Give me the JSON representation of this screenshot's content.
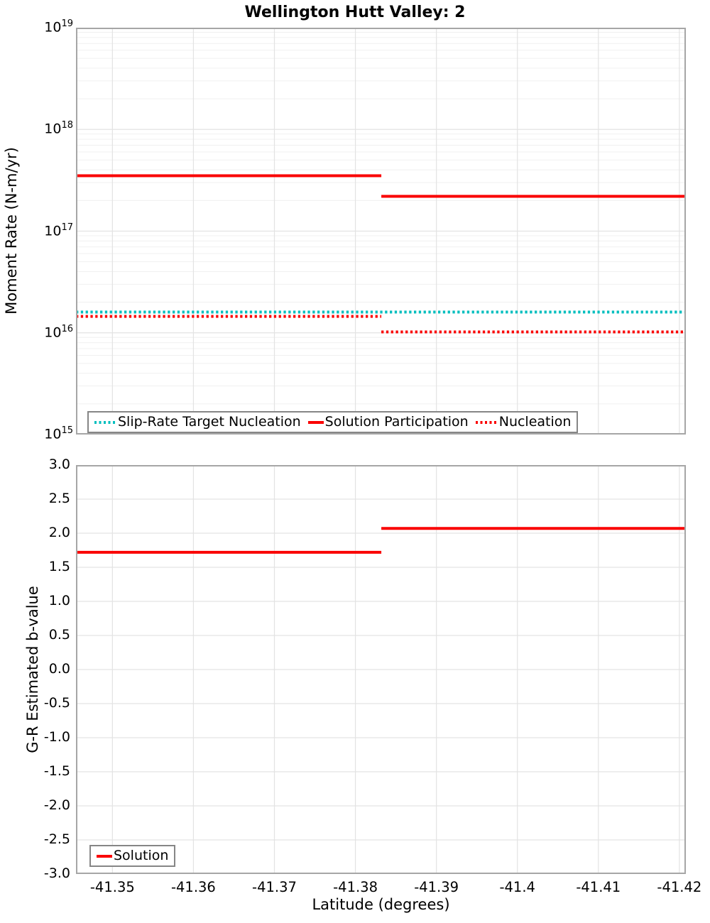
{
  "title": "Wellington Hutt Valley: 2",
  "chart_data": [
    {
      "type": "line",
      "name": "moment-rate-panel",
      "ylabel": "Moment Rate (N-m/yr)",
      "yscale": "log",
      "ylim": [
        1000000000000000.0,
        1e+19
      ],
      "y_ticks": [
        {
          "label": "10^19",
          "value": 1e+19
        },
        {
          "label": "10^18",
          "value": 1e+18
        },
        {
          "label": "10^17",
          "value": 1e+17
        },
        {
          "label": "10^16",
          "value": 1e+16
        },
        {
          "label": "10^15",
          "value": 1000000000000000.0
        }
      ],
      "xlim": [
        -41.3455,
        -41.4208
      ],
      "x_tick_values": [
        -41.35,
        -41.36,
        -41.37,
        -41.38,
        -41.39,
        -41.4,
        -41.41,
        -41.42
      ],
      "grid": true,
      "legend_position": "bottom-left",
      "series": [
        {
          "name": "Slip-Rate Target Nucleation",
          "color": "#00bebe",
          "style": "dotted",
          "segments": [
            {
              "x": [
                -41.3455,
                -41.4208
              ],
              "y": 1.6e+16
            }
          ]
        },
        {
          "name": "Solution Participation",
          "color": "#fa0000",
          "style": "solid",
          "segments": [
            {
              "x": [
                -41.3455,
                -41.3832
              ],
              "y": 3.5e+17
            },
            {
              "x": [
                -41.3832,
                -41.4208
              ],
              "y": 2.2e+17
            }
          ]
        },
        {
          "name": "Nucleation",
          "color": "#fa0000",
          "style": "dotted",
          "segments": [
            {
              "x": [
                -41.3455,
                -41.3832
              ],
              "y": 1.45e+16
            },
            {
              "x": [
                -41.3832,
                -41.4208
              ],
              "y": 1.02e+16
            }
          ]
        }
      ]
    },
    {
      "type": "line",
      "name": "b-value-panel",
      "ylabel": "G-R Estimated b-value",
      "xlabel": "Latitude (degrees)",
      "yscale": "linear",
      "ylim": [
        -3.0,
        3.0
      ],
      "y_tick_step": 0.5,
      "y_ticks": [
        {
          "label": "3.0",
          "value": 3.0
        },
        {
          "label": "2.5",
          "value": 2.5
        },
        {
          "label": "2.0",
          "value": 2.0
        },
        {
          "label": "1.5",
          "value": 1.5
        },
        {
          "label": "1.0",
          "value": 1.0
        },
        {
          "label": "0.5",
          "value": 0.5
        },
        {
          "label": "0.0",
          "value": 0.0
        },
        {
          "label": "-0.5",
          "value": -0.5
        },
        {
          "label": "-1.0",
          "value": -1.0
        },
        {
          "label": "-1.5",
          "value": -1.5
        },
        {
          "label": "-2.0",
          "value": -2.0
        },
        {
          "label": "-2.5",
          "value": -2.5
        },
        {
          "label": "-3.0",
          "value": -3.0
        }
      ],
      "xlim": [
        -41.3455,
        -41.4208
      ],
      "x_ticks": [
        {
          "label": "-41.35",
          "value": -41.35
        },
        {
          "label": "-41.36",
          "value": -41.36
        },
        {
          "label": "-41.37",
          "value": -41.37
        },
        {
          "label": "-41.38",
          "value": -41.38
        },
        {
          "label": "-41.39",
          "value": -41.39
        },
        {
          "label": "-41.4",
          "value": -41.4
        },
        {
          "label": "-41.41",
          "value": -41.41
        },
        {
          "label": "-41.42",
          "value": -41.42
        }
      ],
      "grid": true,
      "legend_position": "bottom-left",
      "series": [
        {
          "name": "Solution",
          "color": "#fa0000",
          "style": "solid",
          "segments": [
            {
              "x": [
                -41.3455,
                -41.3832
              ],
              "y": 1.72
            },
            {
              "x": [
                -41.3832,
                -41.4208
              ],
              "y": 2.07
            }
          ]
        }
      ]
    }
  ],
  "style_colors": {
    "series_red": "#fa0000",
    "series_cyan": "#00bebe"
  }
}
